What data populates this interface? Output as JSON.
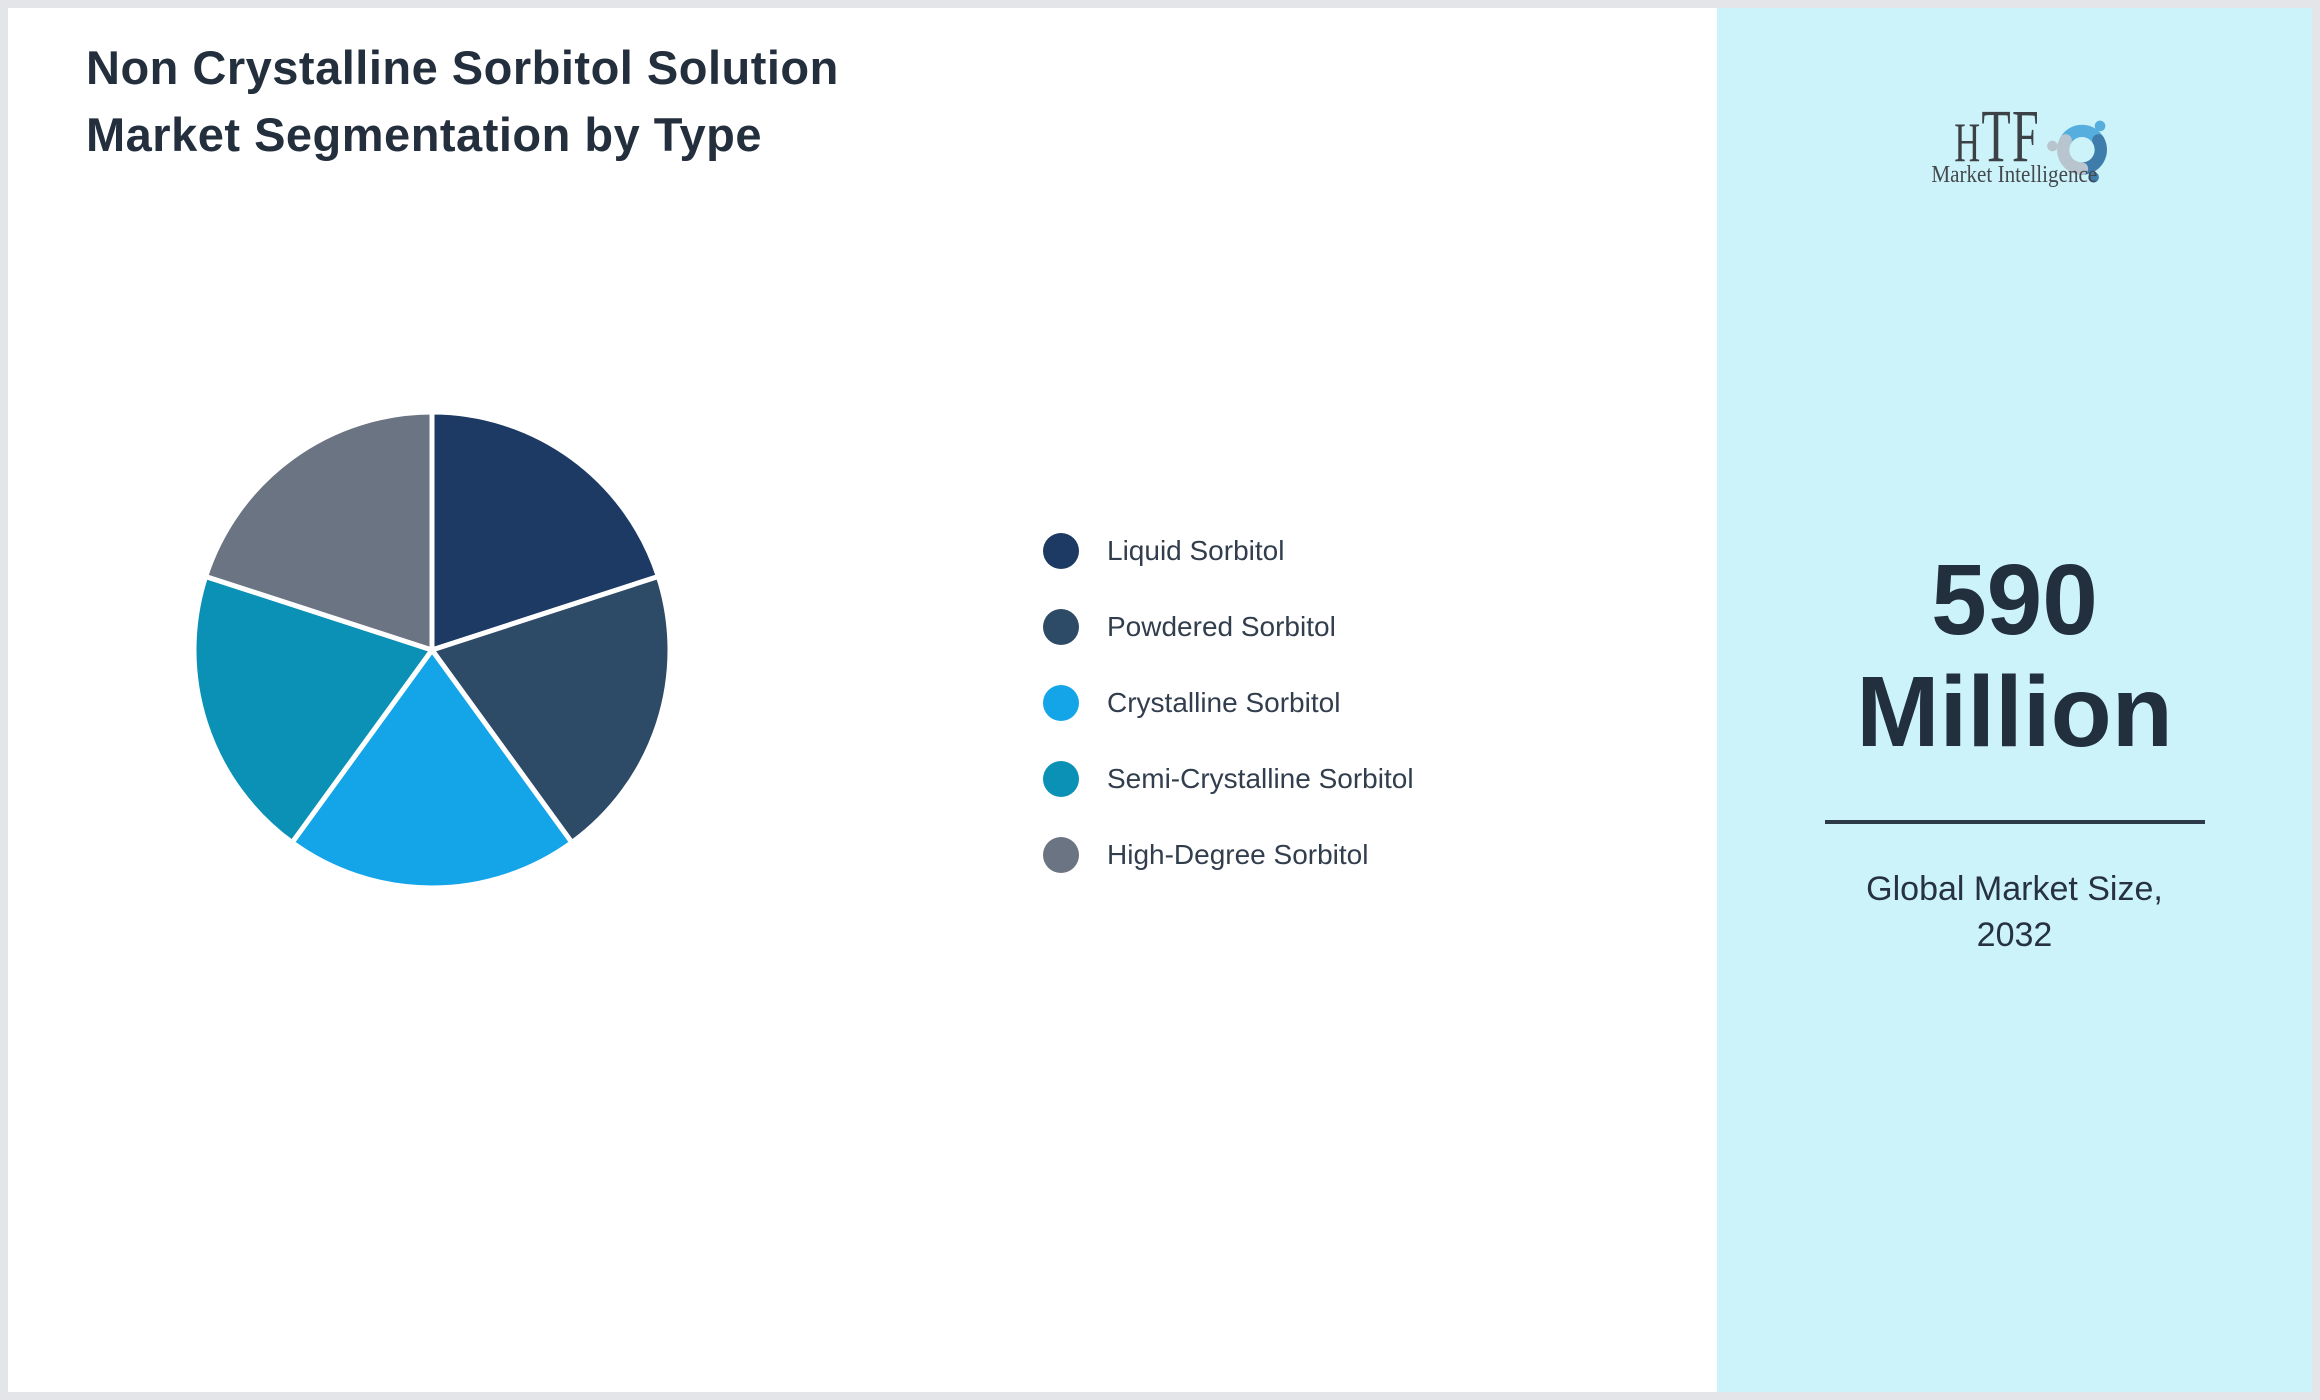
{
  "page": {
    "border_color": "#e3e5e9",
    "main_bg": "#ffffff"
  },
  "title": {
    "line1": "Non Crystalline Sorbitol Solution",
    "line2": "Market Segmentation by Type",
    "color": "#242f3e"
  },
  "chart_data": {
    "type": "pie",
    "title": "Non Crystalline Sorbitol Solution Market Segmentation by Type",
    "categories": [
      "Liquid Sorbitol",
      "Powdered Sorbitol",
      "Crystalline Sorbitol",
      "Semi-Crystalline Sorbitol",
      "High-Degree Sorbitol"
    ],
    "values": [
      20,
      20,
      20,
      20,
      20
    ],
    "unit": "percent share (equal slices, no data labels shown)",
    "colors": [
      "#1c3a63",
      "#2d4a67",
      "#14a5e9",
      "#0a91b5",
      "#6b7482"
    ],
    "legend_position": "right",
    "start_angle_deg": 0,
    "direction": "clockwise",
    "slice_border_color": "#ffffff"
  },
  "sidebar": {
    "bg_color": "#cdf3fa",
    "stat_value_line1": "590",
    "stat_value_line2": "Million",
    "caption_line1": "Global Market Size,",
    "caption_line2": "2032",
    "divider_color": "#2d3b49"
  },
  "logo": {
    "brand": "TF",
    "brand_first_letter": "H",
    "tagline": "Market Intelligence",
    "text_color": "#3b4145",
    "emblem_colors": [
      "#55aedd",
      "#3d7cab",
      "#b9c5ce"
    ]
  }
}
